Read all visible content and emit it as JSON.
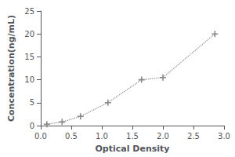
{
  "chart_data": {
    "type": "line",
    "x": [
      0.1,
      0.35,
      0.65,
      1.1,
      1.65,
      2.0,
      2.85
    ],
    "values": [
      0.3,
      0.8,
      2.0,
      5.0,
      10.0,
      10.5,
      20.0
    ],
    "xlabel": "Optical Density",
    "ylabel": "Concentration(ng/mL)",
    "xlim": [
      0,
      3.0
    ],
    "ylim": [
      0,
      25
    ],
    "xticks": [
      {
        "value": 0,
        "label": "0.0"
      },
      0.5,
      {
        "value": 1.0,
        "label": "1.0"
      },
      1.5,
      {
        "value": 2.0,
        "label": "2.0"
      },
      2.5,
      {
        "value": 3.0,
        "label": "3.0"
      }
    ],
    "yticks": [
      0,
      5,
      10,
      15,
      20,
      25
    ],
    "color": "#888888",
    "marker": "+",
    "line_style": "dotted",
    "grid": false
  }
}
